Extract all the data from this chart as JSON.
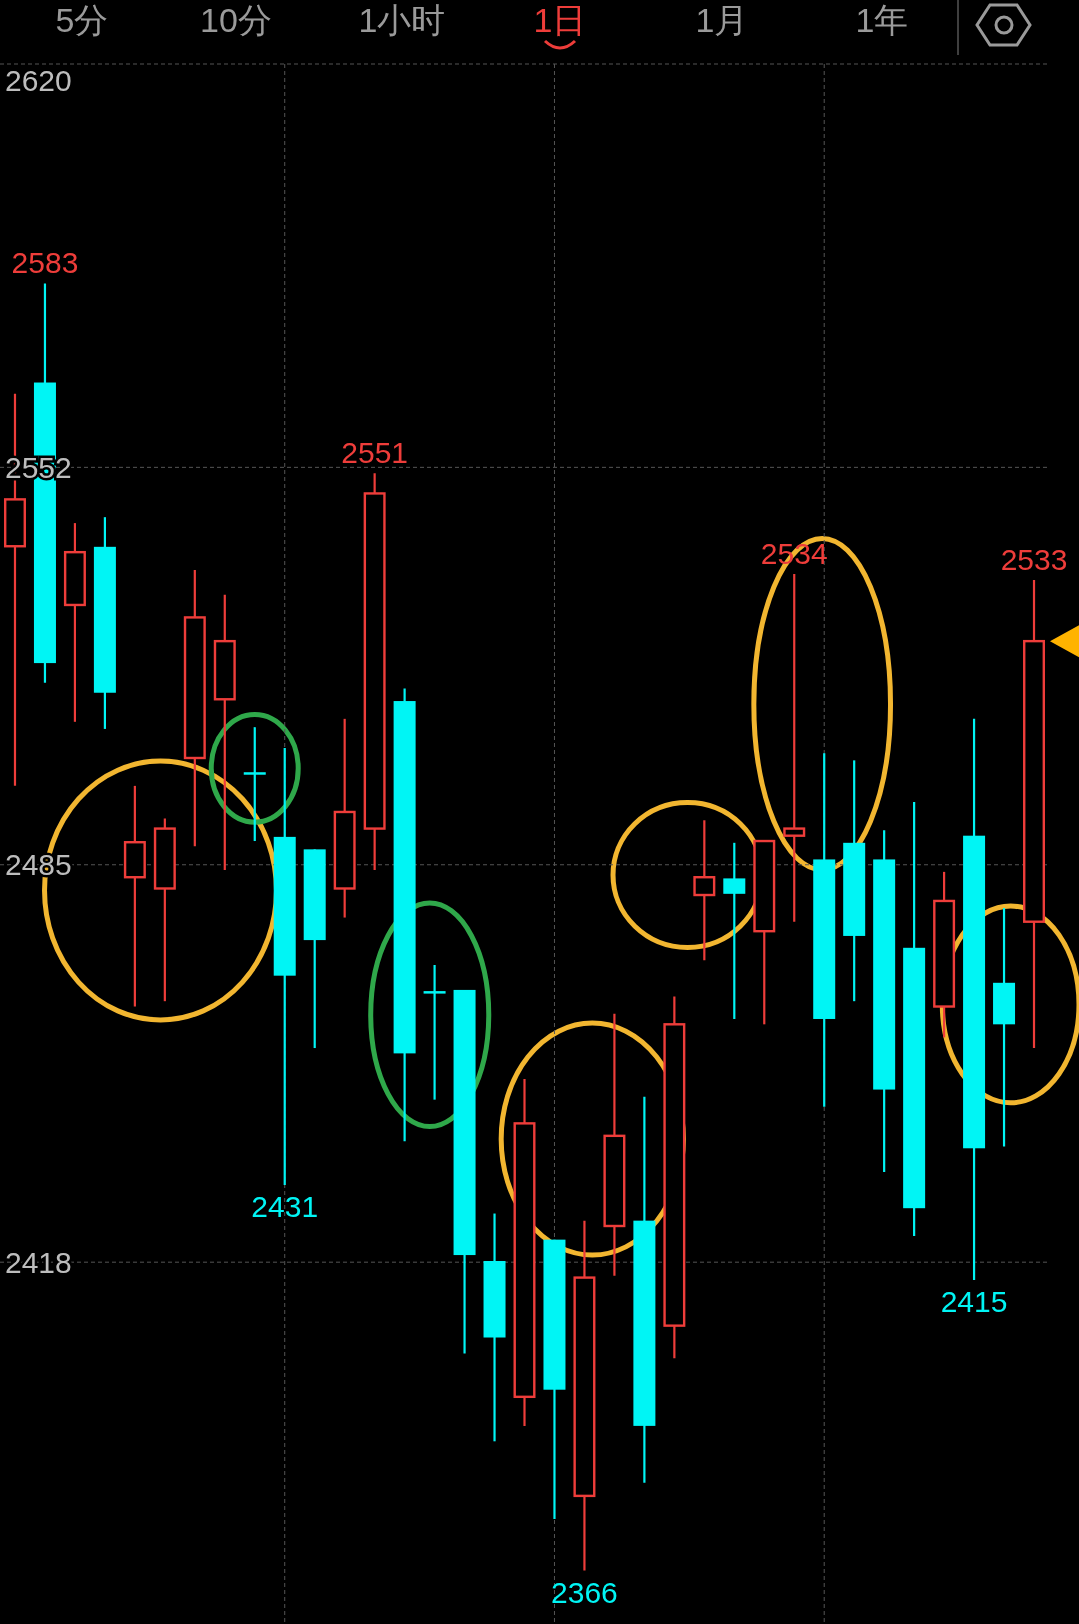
{
  "chart_data": {
    "type": "candlestick",
    "categories": [
      null,
      null,
      null,
      null,
      null,
      null,
      null,
      null,
      null,
      null,
      null,
      null,
      null,
      null,
      null,
      null,
      null,
      null,
      null,
      null,
      null,
      null,
      null,
      null,
      null,
      null,
      null,
      null,
      null,
      null,
      null,
      null,
      null,
      null,
      null
    ],
    "ohlc": [
      [
        2538.7,
        2564.4,
        2498.3,
        2546.6
      ],
      [
        2566.3,
        2583,
        2515.7,
        2519.0
      ],
      [
        2528.8,
        2542.6,
        2509.1,
        2537.7
      ],
      [
        2538.6,
        2543.6,
        2507.9,
        2514.0
      ],
      [
        2482.9,
        2498.3,
        2461.1,
        2488.8
      ],
      [
        2481.0,
        2492.8,
        2462.0,
        2491.1
      ],
      [
        2503.0,
        2534.7,
        2488.1,
        2526.7
      ],
      [
        2512.9,
        2530.5,
        2484.1,
        2522.7
      ],
      [
        2500.6,
        2508.2,
        2489.0,
        2500.2
      ],
      [
        2489.7,
        2504.7,
        2431,
        2466.3
      ],
      [
        2487.6,
        2487.6,
        2454.1,
        2472.3
      ],
      [
        2481.0,
        2509.6,
        2476.1,
        2493.9
      ],
      [
        2491.1,
        2551,
        2484.1,
        2547.6
      ],
      [
        2512.6,
        2514.7,
        2438.4,
        2453.2
      ],
      [
        2463.7,
        2468.1,
        2445.4,
        2463.4
      ],
      [
        2463.9,
        2463.9,
        2402.6,
        2419.2
      ],
      [
        2418.2,
        2426.2,
        2387.8,
        2405.3
      ],
      [
        2395.3,
        2448.9,
        2390.4,
        2441.4
      ],
      [
        2421.8,
        2421.8,
        2374.7,
        2396.5
      ],
      [
        2378.6,
        2425.0,
        2366,
        2415.4
      ],
      [
        2424.1,
        2459.9,
        2415.7,
        2439.3
      ],
      [
        2425.0,
        2445.9,
        2380.8,
        2390.4
      ],
      [
        2407.3,
        2462.8,
        2401.8,
        2458.1
      ],
      [
        2479.9,
        2492.5,
        2468.9,
        2482.9
      ],
      [
        2482.7,
        2488.7,
        2459.0,
        2480.1
      ],
      [
        2473.8,
        2489.0,
        2458.1,
        2489.0
      ],
      [
        2489.9,
        2534,
        2475.4,
        2491.1
      ],
      [
        2485.9,
        2503.8,
        2444.2,
        2459.0
      ],
      [
        2488.7,
        2502.6,
        2462.0,
        2473.0
      ],
      [
        2485.9,
        2490.8,
        2433.2,
        2447.1
      ],
      [
        2471.0,
        2495.6,
        2422.4,
        2427.1
      ],
      [
        2461.1,
        2483.8,
        2455.9,
        2478.9
      ],
      [
        2489.9,
        2509.6,
        2415,
        2437.2
      ],
      [
        2465.1,
        2477.7,
        2437.5,
        2458.1
      ],
      [
        2475.4,
        2533,
        2454.1,
        2522.7
      ]
    ],
    "ylim": [
      2357,
      2620
    ],
    "yticks": [
      2620,
      2552,
      2485,
      2418
    ],
    "grid": true,
    "annotations": [
      "5分",
      "10分",
      "1小时",
      "1日",
      "1月",
      "1年",
      "2583",
      "2551",
      "2534",
      "2533",
      "2431",
      "2366",
      "2415"
    ]
  }
}
